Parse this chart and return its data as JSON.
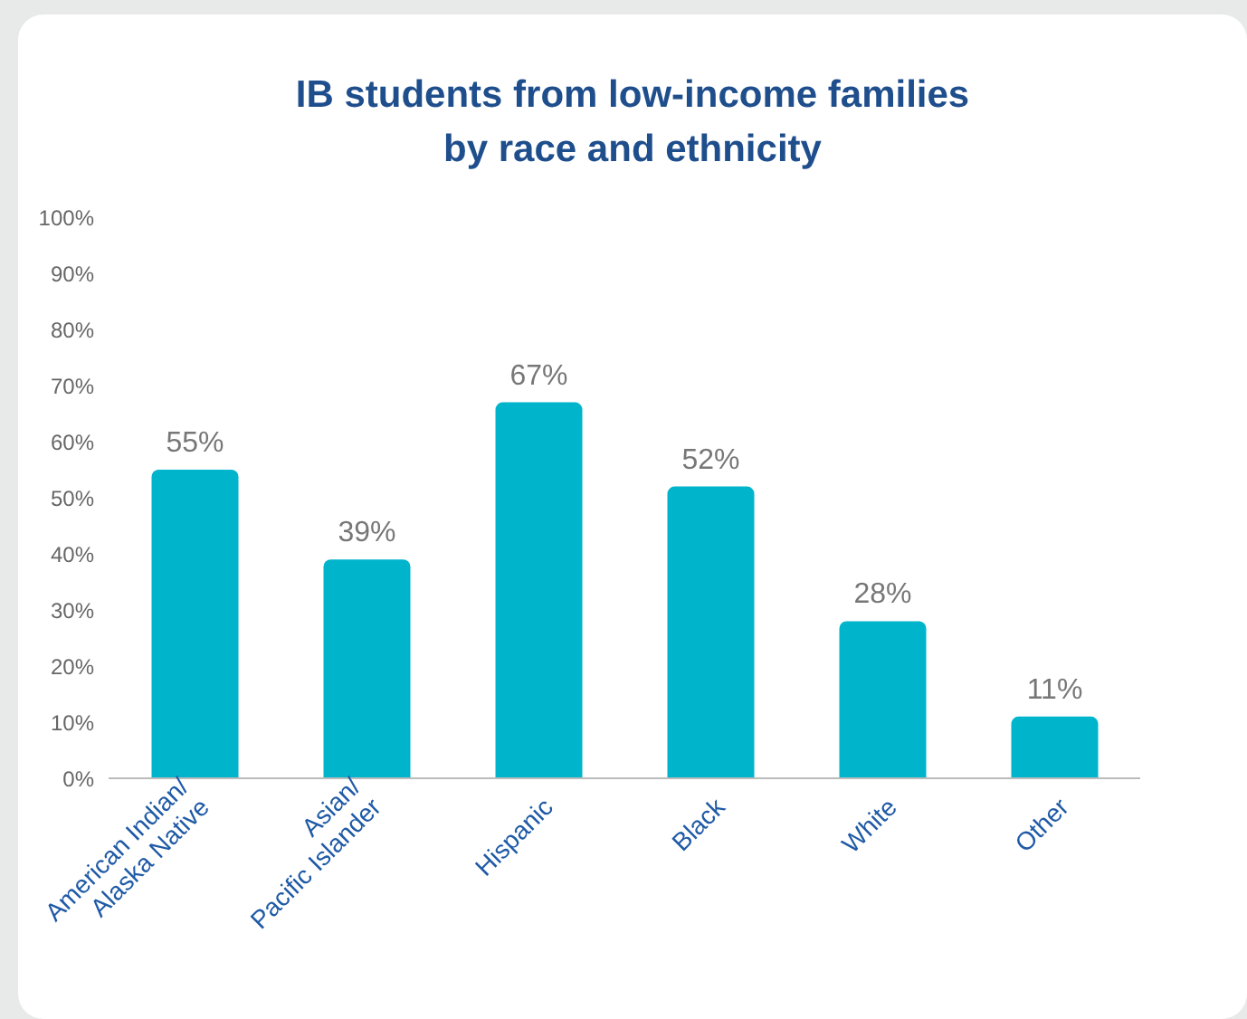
{
  "chart_data": {
    "type": "bar",
    "title": "IB students from low-income families\nby race and ethnicity",
    "categories": [
      "American Indian/Alaska Native",
      "Asian/Pacific Islander",
      "Hispanic",
      "Black",
      "White",
      "Other"
    ],
    "values": [
      55,
      39,
      67,
      52,
      28,
      11
    ],
    "value_labels": [
      "55%",
      "39%",
      "67%",
      "52%",
      "28%",
      "11%"
    ],
    "color": "#00b4cc",
    "ylim": [
      0,
      100
    ],
    "yticks": [
      {
        "value": 0,
        "label": "0%"
      },
      {
        "value": 10,
        "label": "10%"
      },
      {
        "value": 20,
        "label": "20%"
      },
      {
        "value": 30,
        "label": "30%"
      },
      {
        "value": 40,
        "label": "40%"
      },
      {
        "value": 50,
        "label": "50%"
      },
      {
        "value": 60,
        "label": "60%"
      },
      {
        "value": 70,
        "label": "70%"
      },
      {
        "value": 80,
        "label": "80%"
      },
      {
        "value": 90,
        "label": "90%"
      },
      {
        "value": 100,
        "label": "100%"
      }
    ],
    "grid": false
  }
}
